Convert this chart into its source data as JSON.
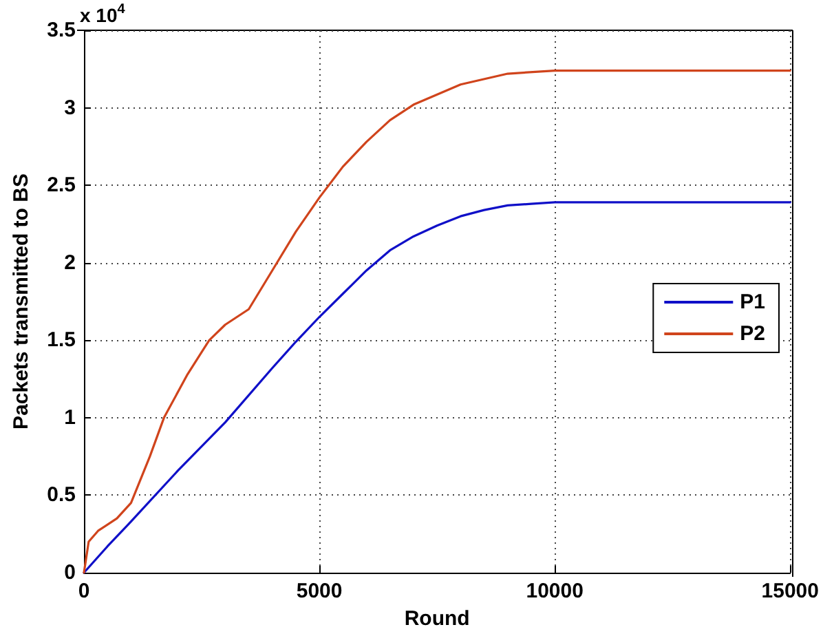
{
  "chart_data": {
    "type": "line",
    "xlabel": "Round",
    "ylabel": "Packets transmitted to BS",
    "annotations": [
      "x 10$^{4}$"
    ],
    "xlim": [
      0,
      15000
    ],
    "xticks": [
      0,
      5000,
      10000,
      15000
    ],
    "ylim": [
      0,
      3.5
    ],
    "yticks": [
      0,
      0.5,
      1,
      1.5,
      2,
      2.5,
      3,
      3.5
    ],
    "grid": true,
    "legend": "right",
    "marker": "none",
    "line_style": "solid",
    "series": [
      {
        "name": "P1",
        "color": "#1010c8",
        "x": [
          0,
          500,
          1000,
          2000,
          3000,
          4000,
          4500,
          5000,
          5500,
          6000,
          6500,
          7000,
          7500,
          8000,
          8500,
          9000,
          9500,
          10000,
          10500,
          15000
        ],
        "values": [
          0,
          0.17,
          0.33,
          0.66,
          0.97,
          1.32,
          1.49,
          1.65,
          1.8,
          1.95,
          2.08,
          2.17,
          2.24,
          2.3,
          2.34,
          2.37,
          2.38,
          2.39,
          2.39,
          2.39
        ]
      },
      {
        "name": "P2",
        "color": "#d0441c",
        "x": [
          0,
          100,
          300,
          700,
          1000,
          1400,
          1700,
          2200,
          2660,
          3000,
          3500,
          4000,
          4500,
          5000,
          5500,
          6000,
          6500,
          7000,
          8000,
          9000,
          10000,
          10500,
          15000
        ],
        "values": [
          0,
          0.2,
          0.27,
          0.35,
          0.45,
          0.75,
          1.0,
          1.28,
          1.5,
          1.6,
          1.7,
          1.95,
          2.2,
          2.42,
          2.62,
          2.78,
          2.92,
          3.02,
          3.15,
          3.22,
          3.24,
          3.24,
          3.24
        ]
      }
    ]
  }
}
